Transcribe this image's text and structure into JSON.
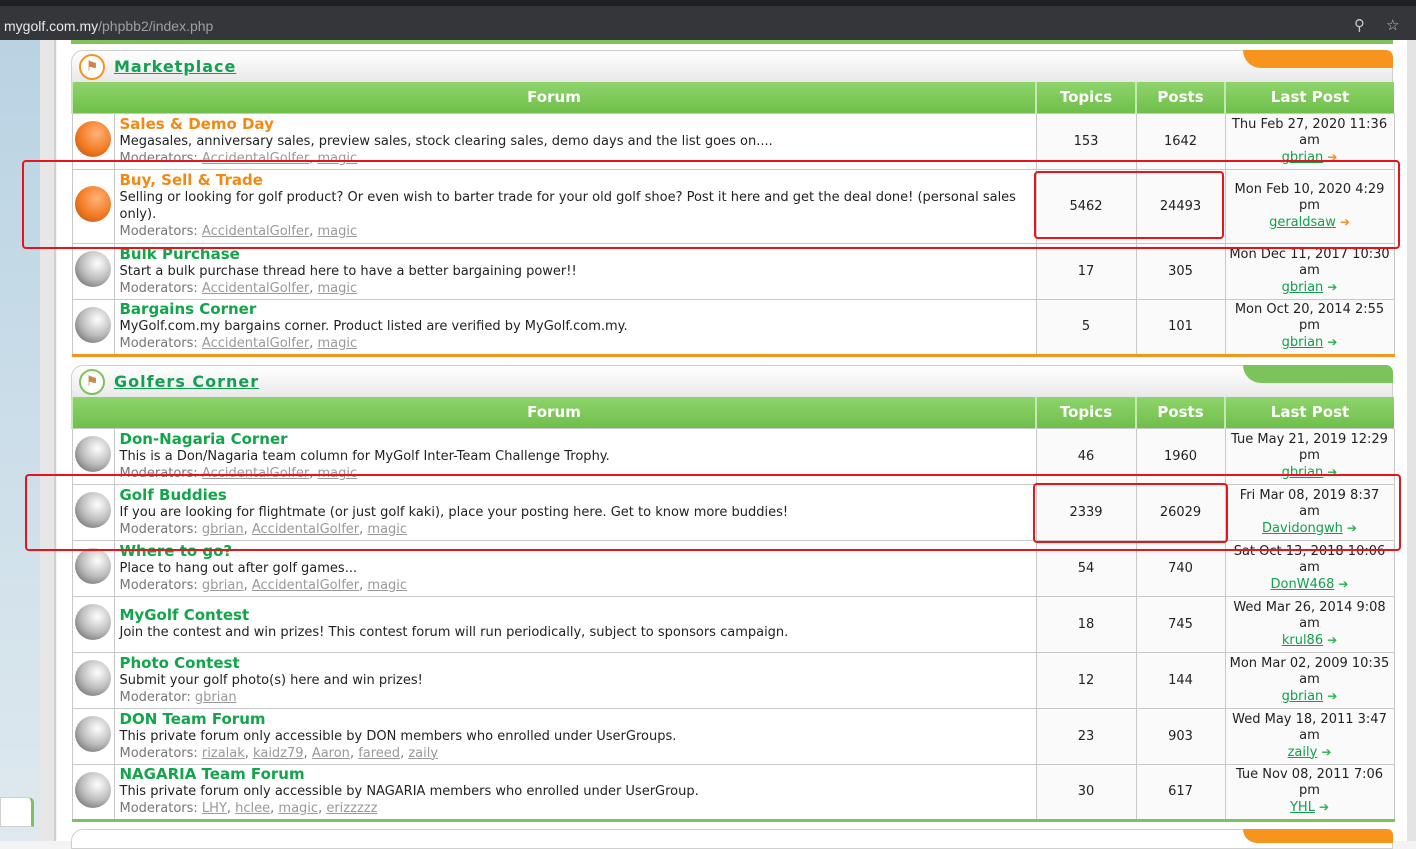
{
  "browser": {
    "url_host": "mygolf.com.my",
    "url_path": "/phpbb2/index.php"
  },
  "headers": {
    "forum": "Forum",
    "topics": "Topics",
    "posts": "Posts",
    "last_post": "Last Post"
  },
  "categories": [
    {
      "title": "Marketplace",
      "accent": "#f7941e",
      "forums": [
        {
          "name": "Sales & Demo Day",
          "desc": "Megasales, anniversary sales, preview sales, stock clearing sales, demo days and the list goes on....",
          "mod_label": "Moderators:",
          "mods": [
            "AccidentalGolfer",
            "magic"
          ],
          "topics": "153",
          "posts": "1642",
          "last_date": "Thu Feb 27, 2020 11:36",
          "last_ampm": "am",
          "last_user": "gbrian",
          "icon": "orange-ball"
        },
        {
          "name": "Buy, Sell & Trade",
          "desc": "Selling or looking for golf product? Or even wish to barter trade for your old golf shoe? Post it here and get the deal done! (personal sales only).",
          "mod_label": "Moderators:",
          "mods": [
            "AccidentalGolfer",
            "magic"
          ],
          "topics": "5462",
          "posts": "24493",
          "last_date": "Mon Feb 10, 2020 4:29",
          "last_ampm": "pm",
          "last_user": "geraldsaw",
          "icon": "orange-ball"
        },
        {
          "name": "Bulk Purchase",
          "desc": "Start a bulk purchase thread here to have a better bargaining power!!",
          "mod_label": "Moderators:",
          "mods": [
            "AccidentalGolfer",
            "magic"
          ],
          "topics": "17",
          "posts": "305",
          "last_date": "Mon Dec 11, 2017 10:30",
          "last_ampm": "am",
          "last_user": "gbrian",
          "icon": "gray-ball"
        },
        {
          "name": "Bargains Corner",
          "desc": "MyGolf.com.my bargains corner. Product listed are verified by MyGolf.com.my.",
          "mod_label": "Moderators:",
          "mods": [
            "AccidentalGolfer",
            "magic"
          ],
          "topics": "5",
          "posts": "101",
          "last_date": "Mon Oct 20, 2014 2:55",
          "last_ampm": "pm",
          "last_user": "gbrian",
          "icon": "gray-ball"
        }
      ]
    },
    {
      "title": "Golfers Corner",
      "accent": "#7cc35b",
      "forums": [
        {
          "name": "Don-Nagaria Corner",
          "desc": "This is a Don/Nagaria team column for MyGolf Inter-Team Challenge Trophy.",
          "mod_label": "Moderators:",
          "mods": [
            "AccidentalGolfer",
            "magic"
          ],
          "topics": "46",
          "posts": "1960",
          "last_date": "Tue May 21, 2019 12:29",
          "last_ampm": "pm",
          "last_user": "gbrian",
          "icon": "gray-ball"
        },
        {
          "name": "Golf Buddies",
          "desc": "If you are looking for flightmate (or just golf kaki), place your posting here. Get to know more buddies!",
          "mod_label": "Moderators:",
          "mods": [
            "gbrian",
            "AccidentalGolfer",
            "magic"
          ],
          "topics": "2339",
          "posts": "26029",
          "last_date": "Fri Mar 08, 2019 8:37",
          "last_ampm": "am",
          "last_user": "Davidongwh",
          "icon": "gray-ball"
        },
        {
          "name": "Where to go?",
          "desc": "Place to hang out after golf games...",
          "mod_label": "Moderators:",
          "mods": [
            "gbrian",
            "AccidentalGolfer",
            "magic"
          ],
          "topics": "54",
          "posts": "740",
          "last_date": "Sat Oct 13, 2018 10:06",
          "last_ampm": "am",
          "last_user": "DonW468",
          "icon": "gray-ball"
        },
        {
          "name": "MyGolf Contest",
          "desc": "Join the contest and win prizes! This contest forum will run periodically, subject to sponsors campaign.",
          "mod_label": "",
          "mods": [],
          "topics": "18",
          "posts": "745",
          "last_date": "Wed Mar 26, 2014 9:08",
          "last_ampm": "am",
          "last_user": "krul86",
          "icon": "gray-ball"
        },
        {
          "name": "Photo Contest",
          "desc": "Submit your golf photo(s) here and win prizes!",
          "mod_label": "Moderator:",
          "mods": [
            "gbrian"
          ],
          "topics": "12",
          "posts": "144",
          "last_date": "Mon Mar 02, 2009 10:35",
          "last_ampm": "am",
          "last_user": "gbrian",
          "icon": "gray-ball"
        },
        {
          "name": "DON Team Forum",
          "desc": "This private forum only accessible by DON members who enrolled under UserGroups.",
          "mod_label": "Moderators:",
          "mods": [
            "rizalak",
            "kaidz79",
            "Aaron",
            "fareed",
            "zaily"
          ],
          "topics": "23",
          "posts": "903",
          "last_date": "Wed May 18, 2011 3:47",
          "last_ampm": "am",
          "last_user": "zaily",
          "icon": "gray-ball"
        },
        {
          "name": "NAGARIA Team Forum",
          "desc": "This private forum only accessible by NAGARIA members who enrolled under UserGroup.",
          "mod_label": "Moderators:",
          "mods": [
            "LHY",
            "hclee",
            "magic",
            "erizzzzz"
          ],
          "topics": "30",
          "posts": "617",
          "last_date": "Tue Nov 08, 2011 7:06",
          "last_ampm": "pm",
          "last_user": "YHL",
          "icon": "gray-ball"
        }
      ]
    }
  ],
  "colors": {
    "header_green": "#6fbf4b",
    "title_green": "#12a54a",
    "title_orange": "#f08a14",
    "annotation_red": "#e8141c"
  }
}
